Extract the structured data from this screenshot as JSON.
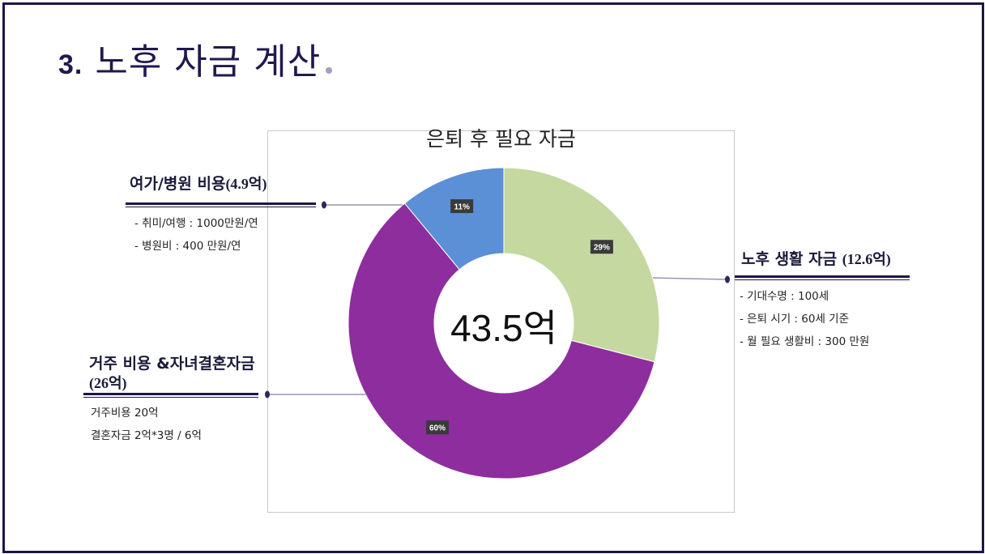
{
  "slide": {
    "title_number": "3.",
    "title_text": "노후 자금 계산"
  },
  "chart_data": {
    "type": "pie",
    "title": "은퇴 후 필요 자금",
    "center_label": "43.5억",
    "slices": [
      {
        "label": "노후 생활 자금",
        "value": 29,
        "value_label": "29%",
        "color": "#c4d8a0"
      },
      {
        "label": "거주 비용 &자녀결혼자금",
        "value": 60,
        "value_label": "60%",
        "color": "#8e2d9e"
      },
      {
        "label": "여가/병원 비용",
        "value": 11,
        "value_label": "11%",
        "color": "#5b8fd6"
      }
    ]
  },
  "callouts": {
    "leisure": {
      "heading": "여가/병원 비용",
      "amount": "(4.9억)",
      "details": [
        "- 취미/여행 : 1000만원/연",
        "- 병원비 : 400 만원/연"
      ]
    },
    "living": {
      "heading": "노후 생활 자금",
      "amount": "(12.6억)",
      "details": [
        "- 기대수명 : 100세",
        "- 은퇴 시기 : 60세 기준",
        "- 월 필요 생활비 : 300 만원"
      ]
    },
    "housing": {
      "heading": "거주 비용 &자녀결혼자금",
      "amount": "(26억)",
      "details": [
        "거주비용 20억",
        "결혼자금 2억*3명 / 6억"
      ]
    }
  }
}
